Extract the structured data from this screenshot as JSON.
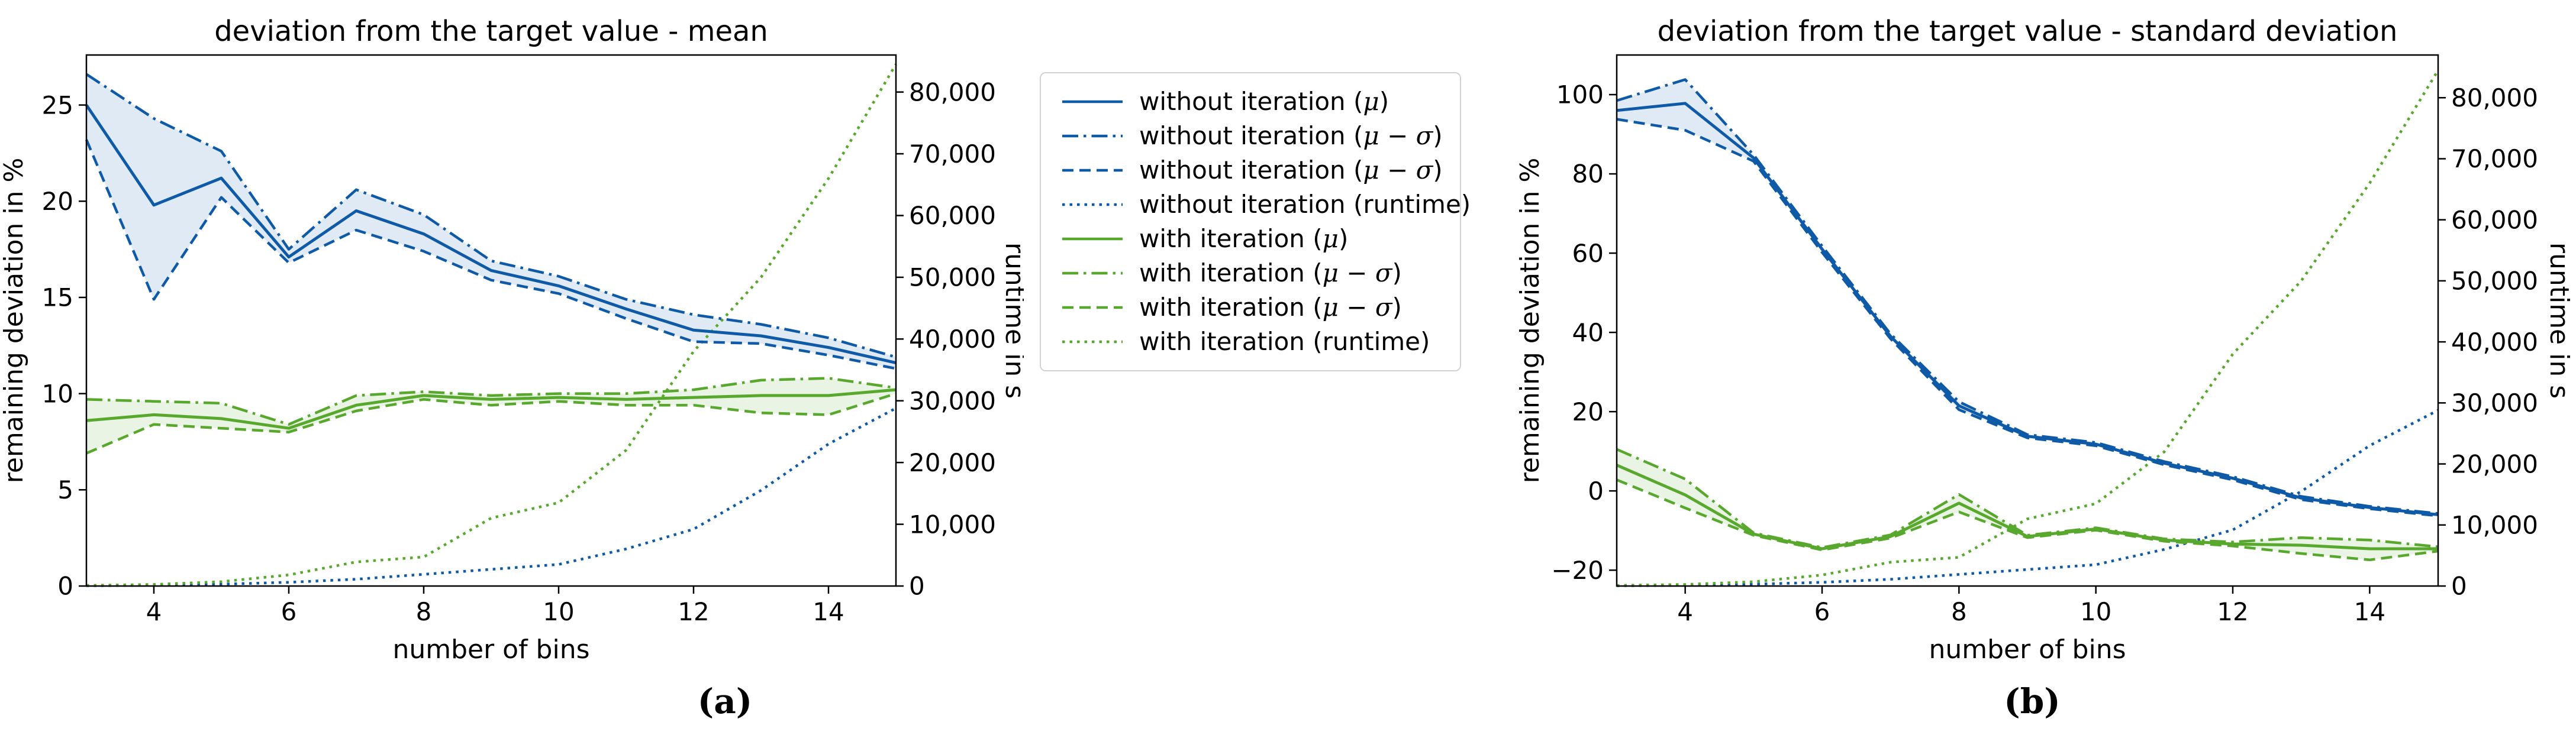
{
  "figure": {
    "captions": {
      "a": "(a)",
      "b": "(b)"
    },
    "colors": {
      "without": "#0e5aa7",
      "with": "#58a82d",
      "without_fill": "rgba(14,90,167,0.13)",
      "with_fill": "rgba(88,168,45,0.13)",
      "axis": "#000000",
      "legend_border": "#d2d2d2"
    }
  },
  "legend": {
    "entries": [
      {
        "label": "without iteration (μ)",
        "color": "without",
        "style": "solid"
      },
      {
        "label": "without iteration (μ − σ)",
        "color": "without",
        "style": "dashdot"
      },
      {
        "label": "without iteration (μ − σ)",
        "color": "without",
        "style": "dashed"
      },
      {
        "label": "without iteration (runtime)",
        "color": "without",
        "style": "dotted"
      },
      {
        "label": "with iteration (μ)",
        "color": "with",
        "style": "solid"
      },
      {
        "label": "with iteration (μ − σ)",
        "color": "with",
        "style": "dashdot"
      },
      {
        "label": "with iteration (μ − σ)",
        "color": "with",
        "style": "dashed"
      },
      {
        "label": "with iteration (runtime)",
        "color": "with",
        "style": "dotted"
      }
    ]
  },
  "chart_data": [
    {
      "type": "line",
      "title": "deviation from the target value - mean",
      "xlabel": "number of bins",
      "ylabel_left": "remaining deviation in %",
      "ylabel_right": "runtime in s",
      "x": [
        3,
        4,
        5,
        6,
        7,
        8,
        9,
        10,
        11,
        12,
        13,
        14,
        15
      ],
      "xticks": [
        4,
        6,
        8,
        10,
        12,
        14
      ],
      "xlim": [
        3,
        15
      ],
      "ylim_left": [
        0,
        27.6
      ],
      "yticks_left": [
        0,
        5,
        10,
        15,
        20,
        25
      ],
      "ylim_right": [
        0,
        86000
      ],
      "yticks_right": {
        "values": [
          0,
          10000,
          20000,
          30000,
          40000,
          50000,
          60000,
          70000,
          80000
        ],
        "labels": [
          "0",
          "10,000",
          "20,000",
          "30,000",
          "40,000",
          "50,000",
          "60,000",
          "70,000",
          "80,000"
        ]
      },
      "grid": false,
      "series": [
        {
          "label": "without iteration (μ)",
          "axis": "left",
          "color": "without",
          "style": "solid",
          "values": [
            25.0,
            19.8,
            21.2,
            17.1,
            19.5,
            18.3,
            16.4,
            15.6,
            14.4,
            13.3,
            13.0,
            12.4,
            11.6
          ]
        },
        {
          "label": "without iteration (μ − σ)",
          "axis": "left",
          "color": "without",
          "style": "dashdot",
          "values": [
            26.6,
            24.3,
            22.6,
            17.5,
            20.6,
            19.3,
            16.9,
            16.1,
            14.9,
            14.1,
            13.6,
            12.9,
            11.9
          ]
        },
        {
          "label": "without iteration (μ − σ)",
          "axis": "left",
          "color": "without",
          "style": "dashed",
          "values": [
            23.2,
            14.9,
            20.2,
            16.8,
            18.5,
            17.4,
            15.9,
            15.2,
            13.9,
            12.7,
            12.6,
            12.0,
            11.3
          ]
        },
        {
          "label": "without iteration (runtime)",
          "axis": "right",
          "color": "without",
          "style": "dotted",
          "values": [
            50,
            120,
            300,
            600,
            1100,
            1900,
            2700,
            3500,
            6000,
            9200,
            15500,
            23000,
            28800
          ]
        },
        {
          "label": "with iteration (μ)",
          "axis": "left",
          "color": "with",
          "style": "solid",
          "values": [
            8.6,
            8.9,
            8.7,
            8.2,
            9.4,
            9.9,
            9.7,
            9.8,
            9.7,
            9.8,
            9.9,
            9.9,
            10.2
          ]
        },
        {
          "label": "with iteration (μ − σ)",
          "axis": "left",
          "color": "with",
          "style": "dashdot",
          "values": [
            9.7,
            9.6,
            9.5,
            8.4,
            9.9,
            10.1,
            9.9,
            10.0,
            10.0,
            10.2,
            10.7,
            10.8,
            10.3
          ]
        },
        {
          "label": "with iteration (μ − σ)",
          "axis": "left",
          "color": "with",
          "style": "dashed",
          "values": [
            6.9,
            8.4,
            8.2,
            8.0,
            9.1,
            9.7,
            9.4,
            9.6,
            9.4,
            9.4,
            9.0,
            8.9,
            10.0
          ]
        },
        {
          "label": "with iteration (runtime)",
          "axis": "right",
          "color": "with",
          "style": "dotted",
          "values": [
            100,
            250,
            700,
            1800,
            3900,
            4700,
            11000,
            13500,
            22000,
            38000,
            50000,
            66000,
            84500
          ]
        }
      ],
      "bands": [
        {
          "upper": 1,
          "lower": 2,
          "fill": "without_fill"
        },
        {
          "upper": 5,
          "lower": 6,
          "fill": "with_fill"
        }
      ]
    },
    {
      "type": "line",
      "title": "deviation from the target value - standard deviation",
      "xlabel": "number of bins",
      "ylabel_left": "remaining deviation in %",
      "ylabel_right": "runtime in s",
      "x": [
        3,
        4,
        5,
        6,
        7,
        8,
        9,
        10,
        11,
        12,
        13,
        14,
        15
      ],
      "xticks": [
        4,
        6,
        8,
        10,
        12,
        14
      ],
      "xlim": [
        3,
        15
      ],
      "ylim_left": [
        -24,
        110
      ],
      "yticks_left": [
        -20,
        0,
        20,
        40,
        60,
        80,
        100
      ],
      "ylim_right": [
        0,
        87000
      ],
      "yticks_right": {
        "values": [
          0,
          10000,
          20000,
          30000,
          40000,
          50000,
          60000,
          70000,
          80000
        ],
        "labels": [
          "0",
          "10,000",
          "20,000",
          "30,000",
          "40,000",
          "50,000",
          "60,000",
          "70,000",
          "80,000"
        ]
      },
      "grid": false,
      "series": [
        {
          "label": "without iteration (μ)",
          "axis": "left",
          "color": "without",
          "style": "solid",
          "values": [
            96.0,
            97.8,
            84.0,
            61.0,
            39.0,
            21.5,
            13.8,
            11.8,
            7.0,
            3.2,
            -1.8,
            -4.2,
            -6.0
          ]
        },
        {
          "label": "without iteration (μ − σ)",
          "axis": "left",
          "color": "without",
          "style": "dashdot",
          "values": [
            98.5,
            103.8,
            84.8,
            61.8,
            39.6,
            22.5,
            14.2,
            12.2,
            7.4,
            3.6,
            -1.4,
            -3.9,
            -5.7
          ]
        },
        {
          "label": "without iteration (μ − σ)",
          "axis": "left",
          "color": "without",
          "style": "dashed",
          "values": [
            93.8,
            91.0,
            83.2,
            60.2,
            38.4,
            20.5,
            13.4,
            11.4,
            6.6,
            2.8,
            -2.2,
            -4.5,
            -6.3
          ]
        },
        {
          "label": "without iteration (runtime)",
          "axis": "right",
          "color": "without",
          "style": "dotted",
          "values": [
            50,
            120,
            300,
            600,
            1100,
            1900,
            2700,
            3500,
            6000,
            9200,
            15500,
            23000,
            28800
          ]
        },
        {
          "label": "with iteration (μ)",
          "axis": "left",
          "color": "with",
          "style": "solid",
          "values": [
            6.5,
            -1.0,
            -10.9,
            -14.6,
            -11.5,
            -3.1,
            -11.5,
            -9.6,
            -12.4,
            -13.4,
            -13.7,
            -14.6,
            -14.6
          ]
        },
        {
          "label": "with iteration (μ − σ)",
          "axis": "left",
          "color": "with",
          "style": "dashdot",
          "values": [
            10.5,
            3.0,
            -10.6,
            -14.3,
            -11.1,
            -0.9,
            -11.2,
            -9.3,
            -12.1,
            -12.9,
            -11.8,
            -12.4,
            -14.1
          ]
        },
        {
          "label": "with iteration (μ − σ)",
          "axis": "left",
          "color": "with",
          "style": "dashed",
          "values": [
            2.8,
            -4.3,
            -11.2,
            -14.9,
            -11.9,
            -5.3,
            -11.8,
            -9.9,
            -12.7,
            -13.9,
            -15.8,
            -17.4,
            -15.2
          ]
        },
        {
          "label": "with iteration (runtime)",
          "axis": "right",
          "color": "with",
          "style": "dotted",
          "values": [
            100,
            250,
            700,
            1800,
            3900,
            4700,
            11000,
            13500,
            22000,
            38000,
            50000,
            66000,
            84500
          ]
        }
      ],
      "bands": [
        {
          "upper": 1,
          "lower": 2,
          "fill": "without_fill"
        },
        {
          "upper": 5,
          "lower": 6,
          "fill": "with_fill"
        }
      ]
    }
  ]
}
